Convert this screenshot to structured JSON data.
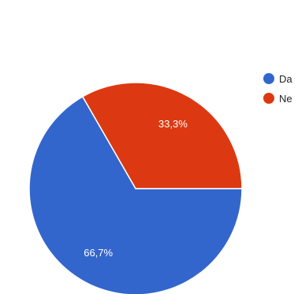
{
  "chart_data": {
    "type": "pie",
    "legend_position": "right",
    "slices": [
      {
        "label": "Da",
        "value": 66.7,
        "display": "66,7%",
        "color": "#3366cc"
      },
      {
        "label": "Ne",
        "value": 33.3,
        "display": "33,3%",
        "color": "#dc3912"
      }
    ]
  }
}
